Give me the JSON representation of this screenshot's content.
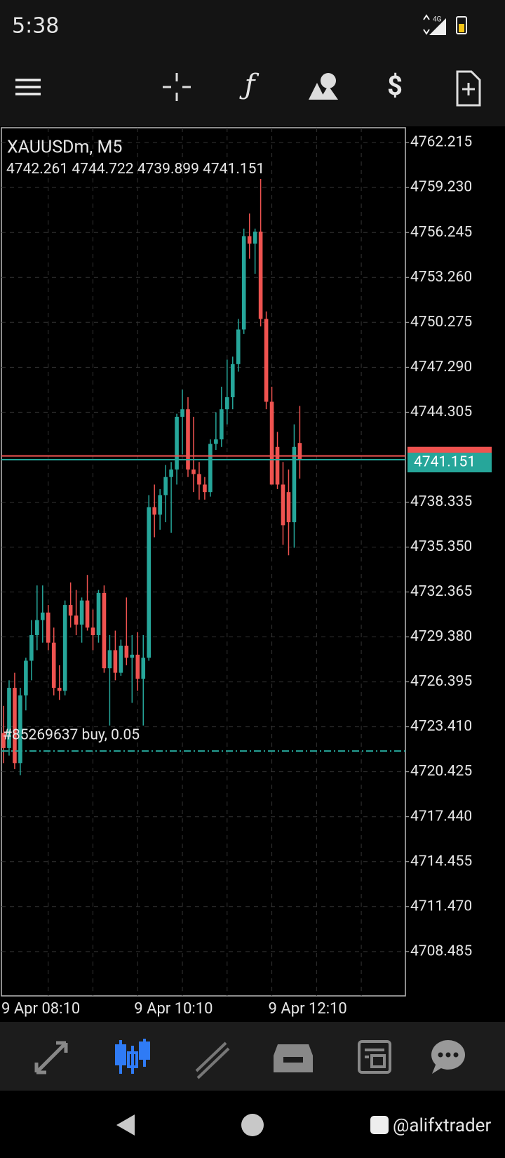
{
  "status_bar": {
    "time": "5:38",
    "network": "4G"
  },
  "chart_data": {
    "type": "candlestick",
    "title": "XAUUSDm, M5",
    "categories": [
      "9 Apr 08:10",
      null,
      null,
      null,
      null,
      null,
      null,
      null,
      null,
      null,
      null,
      null,
      null,
      null,
      null,
      null,
      null,
      null,
      null,
      null,
      null,
      null,
      null,
      null,
      "9 Apr 10:10",
      null,
      null,
      null,
      null,
      null,
      null,
      null,
      null,
      null,
      null,
      null,
      null,
      null,
      null,
      null,
      null,
      null,
      null,
      null,
      null,
      null,
      null,
      null,
      "9 Apr 12:10",
      null,
      null,
      null,
      null,
      null
    ],
    "open": [
      4723.0,
      4722.0,
      4726.0,
      4721.0,
      4725.5,
      4727.8,
      4729.5,
      4730.5,
      4731.0,
      4729.0,
      4726.0,
      4725.8,
      4731.5,
      4730.8,
      4730.2,
      4731.8,
      4730.0,
      4729.5,
      4732.3,
      4727.3,
      4728.5,
      4727.0,
      4728.8,
      4728.0,
      4728.2,
      4726.6,
      4728.0,
      4738.0,
      4737.5,
      4738.8,
      4740.0,
      4740.5,
      4744.0,
      4744.5,
      4740.5,
      4740.2,
      4739.5,
      4739.0,
      4742.2,
      4742.5,
      4744.5,
      4745.3,
      4747.5,
      4749.8,
      4756.0,
      4755.5,
      4756.3,
      4750.5,
      4745.0,
      4742.0,
      4739.5,
      4739.0,
      4737.0,
      4742.261
    ],
    "high": [
      4724.8,
      4726.5,
      4727.0,
      4726.0,
      4728.0,
      4730.5,
      4732.8,
      4732.8,
      4731.5,
      4730.0,
      4727.5,
      4731.8,
      4733.0,
      4732.5,
      4732.0,
      4733.5,
      4731.2,
      4732.5,
      4732.8,
      4729.5,
      4729.8,
      4729.2,
      4732.0,
      4729.5,
      4729.7,
      4729.5,
      4738.8,
      4739.5,
      4739.2,
      4740.8,
      4741.0,
      4744.2,
      4745.8,
      4745.3,
      4744.0,
      4741.0,
      4740.0,
      4742.5,
      4744.3,
      4746.0,
      4747.8,
      4748.0,
      4750.5,
      4756.5,
      4757.5,
      4756.5,
      4759.8,
      4751.0,
      4746.0,
      4743.0,
      4741.0,
      4740.5,
      4743.5,
      4744.722
    ],
    "low": [
      4721.0,
      4721.5,
      4720.6,
      4720.2,
      4724.5,
      4726.5,
      4728.5,
      4729.0,
      4728.5,
      4725.5,
      4725.2,
      4725.5,
      4730.0,
      4729.5,
      4729.0,
      4729.8,
      4728.5,
      4729.0,
      4727.0,
      4723.5,
      4726.5,
      4726.8,
      4727.5,
      4725.0,
      4725.8,
      4723.5,
      4727.8,
      4736.0,
      4736.5,
      4737.0,
      4736.3,
      4739.5,
      4741.5,
      4740.0,
      4739.0,
      4738.5,
      4738.5,
      4738.7,
      4741.8,
      4742.0,
      4743.5,
      4744.5,
      4747.0,
      4749.5,
      4754.5,
      4753.5,
      4750.0,
      4744.5,
      4739.5,
      4739.2,
      4735.5,
      4734.8,
      4735.3,
      4739.899
    ],
    "close": [
      4722.0,
      4726.0,
      4721.0,
      4725.5,
      4727.8,
      4729.5,
      4730.5,
      4731.0,
      4729.0,
      4726.0,
      4725.8,
      4731.5,
      4730.8,
      4730.2,
      4731.8,
      4730.0,
      4729.5,
      4732.3,
      4727.3,
      4728.5,
      4727.0,
      4728.8,
      4728.0,
      4728.2,
      4726.6,
      4728.0,
      4738.0,
      4737.5,
      4738.8,
      4740.0,
      4740.5,
      4744.0,
      4744.5,
      4740.5,
      4740.2,
      4739.5,
      4739.0,
      4742.2,
      4742.5,
      4744.5,
      4745.3,
      4747.5,
      4749.8,
      4756.0,
      4755.5,
      4756.3,
      4750.5,
      4745.0,
      4739.5,
      4739.5,
      4736.8,
      4737.0,
      4742.0,
      4741.151
    ],
    "up_color": "#26a69a",
    "down_color": "#ef5350",
    "ylim": [
      4705.54,
      4763.2
    ],
    "yticks": [
      4762.215,
      {
        "value": 4759.23,
        "label": "4759.230"
      },
      4756.245,
      {
        "value": 4753.26,
        "label": "4753.260"
      },
      4750.275,
      {
        "value": 4747.29,
        "label": "4747.290"
      },
      4744.305,
      4738.335,
      {
        "value": 4735.35,
        "label": "4735.350"
      },
      4732.365,
      {
        "value": 4729.38,
        "label": "4729.380"
      },
      4726.395,
      {
        "value": 4723.41,
        "label": "4723.410"
      },
      4720.425,
      {
        "value": 4717.44,
        "label": "4717.440"
      },
      4714.455,
      {
        "value": 4711.47,
        "label": "4711.470"
      },
      4708.485
    ],
    "grid": true,
    "bid": 4741.151,
    "ask": 4741.4,
    "buy_price": 4721.8,
    "order_label": "#85269637 buy, 0.05"
  },
  "watermark": "@alifxtrader"
}
